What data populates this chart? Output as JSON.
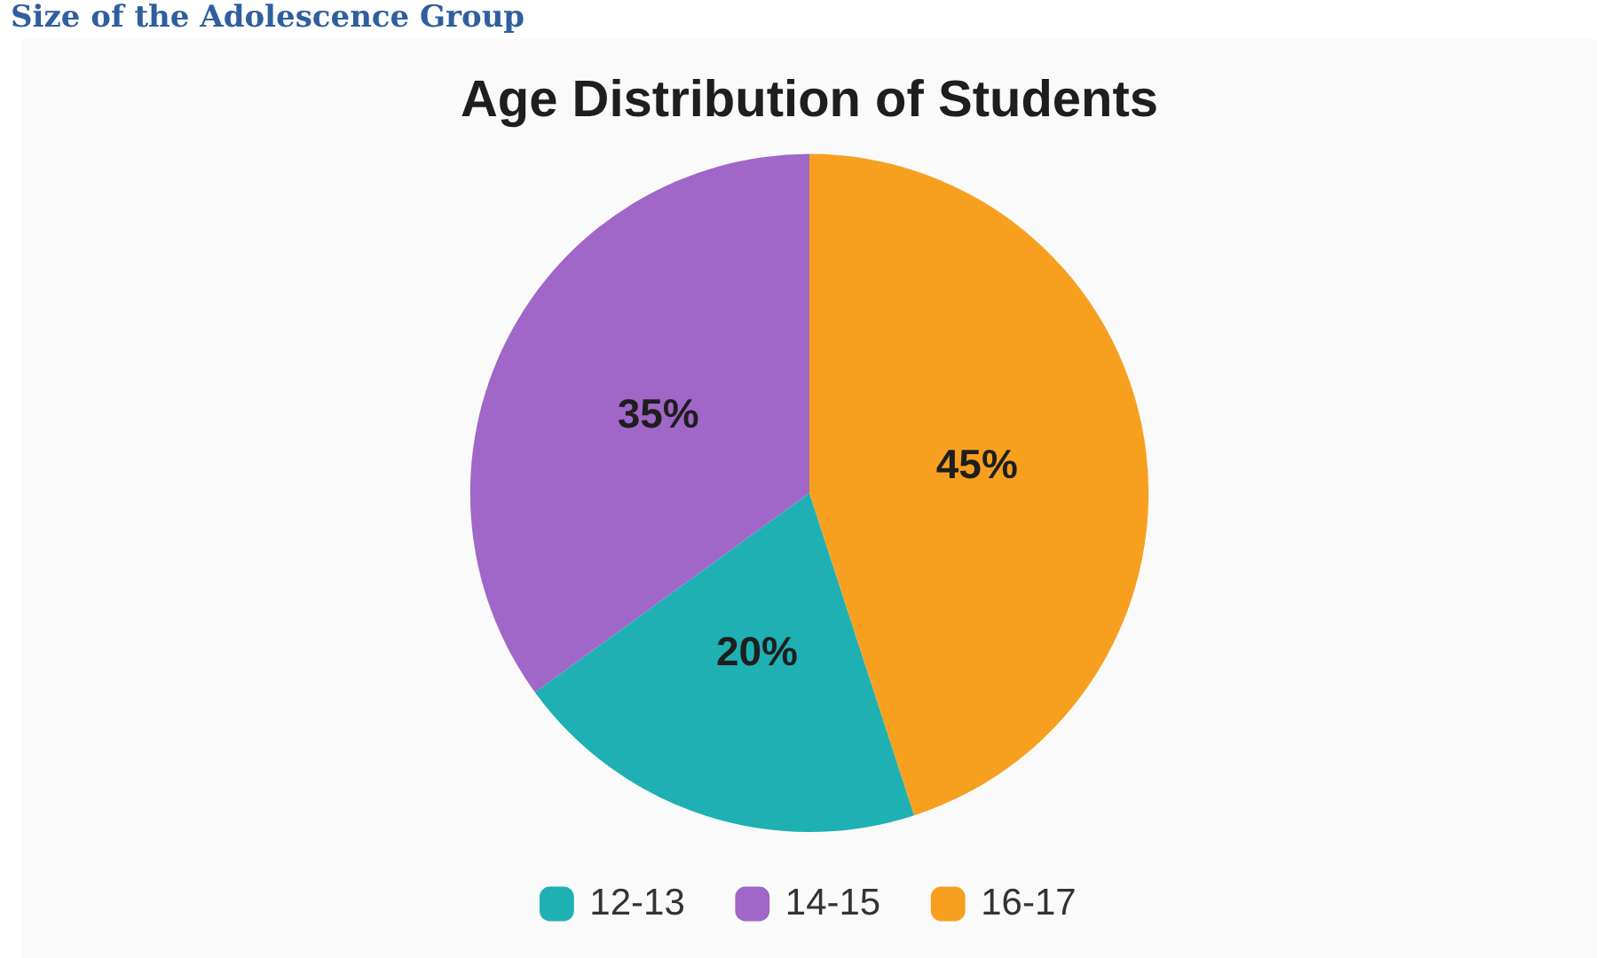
{
  "chart_data": {
    "type": "pie",
    "title": "Age Distribution of Students",
    "annotations": [
      "Size of the Adolescence Group"
    ],
    "categories": [
      "12-13",
      "14-15",
      "16-17"
    ],
    "values": [
      20,
      35,
      45
    ],
    "value_labels": [
      "20%",
      "35%",
      "45%"
    ],
    "colors": [
      "#1fb0b3",
      "#a066c8",
      "#f7a01f"
    ],
    "legend": "bottom"
  }
}
